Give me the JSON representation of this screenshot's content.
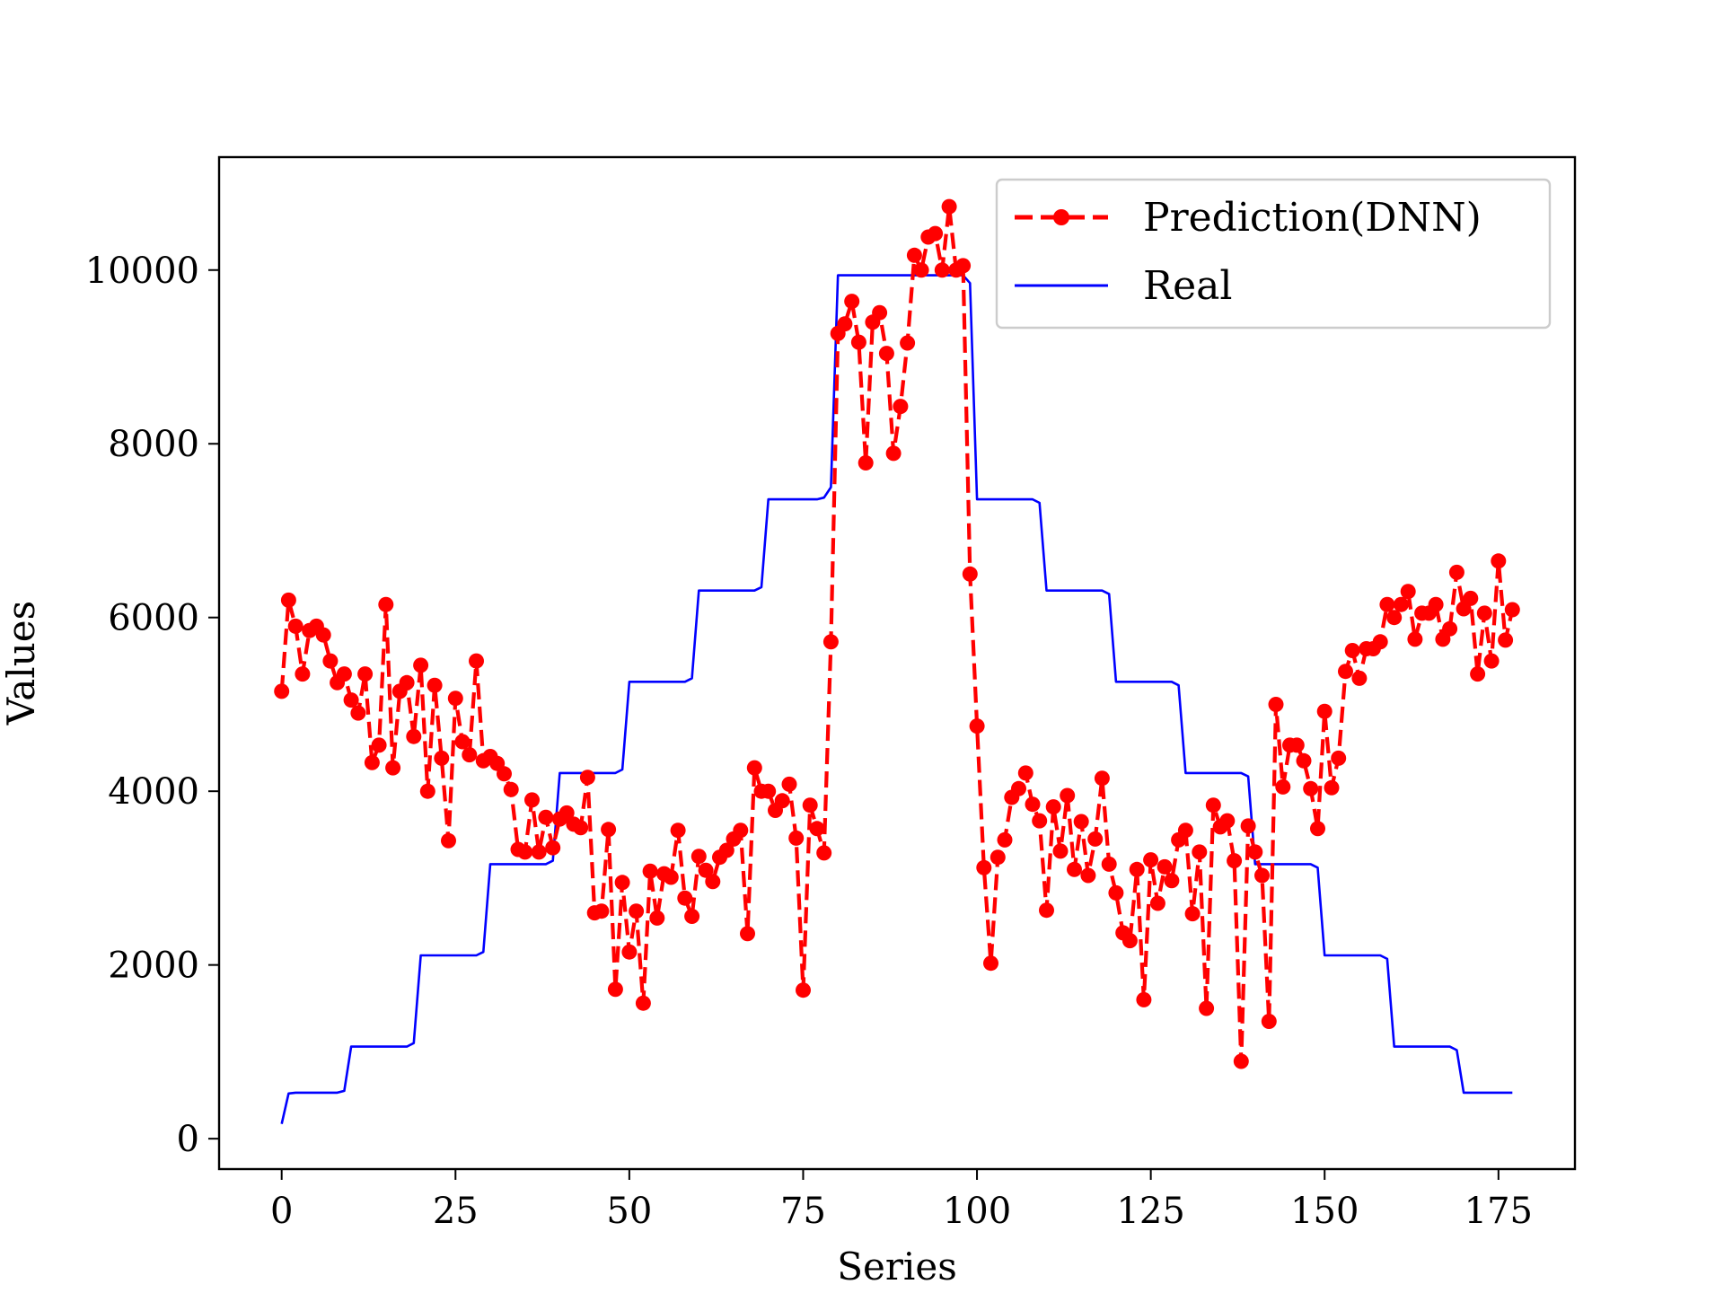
{
  "chart_data": {
    "type": "line",
    "xlabel": "Series",
    "ylabel": "Values",
    "xlim": [
      -9,
      186
    ],
    "ylim": [
      -350,
      11300
    ],
    "xticks": [
      0,
      25,
      50,
      75,
      100,
      125,
      150,
      175
    ],
    "yticks": [
      0,
      2000,
      4000,
      6000,
      8000,
      10000
    ],
    "legend_position": "top-right",
    "series": [
      {
        "name": "Prediction(DNN)",
        "color": "#ff0000",
        "style": "dashed-with-dots",
        "x": [
          0,
          1,
          2,
          3,
          4,
          5,
          6,
          7,
          8,
          9,
          10,
          11,
          12,
          13,
          14,
          15,
          16,
          17,
          18,
          19,
          20,
          21,
          22,
          23,
          24,
          25,
          26,
          27,
          28,
          29,
          30,
          31,
          32,
          33,
          34,
          35,
          36,
          37,
          38,
          39,
          40,
          41,
          42,
          43,
          44,
          45,
          46,
          47,
          48,
          49,
          50,
          51,
          52,
          53,
          54,
          55,
          56,
          57,
          58,
          59,
          60,
          61,
          62,
          63,
          64,
          65,
          66,
          67,
          68,
          69,
          70,
          71,
          72,
          73,
          74,
          75,
          76,
          77,
          78,
          79,
          80,
          81,
          82,
          83,
          84,
          85,
          86,
          87,
          88,
          89,
          90,
          91,
          92,
          93,
          94,
          95,
          96,
          97,
          98,
          99,
          100,
          101,
          102,
          103,
          104,
          105,
          106,
          107,
          108,
          109,
          110,
          111,
          112,
          113,
          114,
          115,
          116,
          117,
          118,
          119,
          120,
          121,
          122,
          123,
          124,
          125,
          126,
          127,
          128,
          129,
          130,
          131,
          132,
          133,
          134,
          135,
          136,
          137,
          138,
          139,
          140,
          141,
          142,
          143,
          144,
          145,
          146,
          147,
          148,
          149,
          150,
          151,
          152,
          153,
          154,
          155,
          156,
          157,
          158,
          159,
          160,
          161,
          162,
          163,
          164,
          165,
          166,
          167,
          168,
          169,
          170,
          171,
          172,
          173,
          174,
          175,
          176,
          177
        ],
        "y": [
          5150,
          6200,
          5900,
          5350,
          5850,
          5900,
          5800,
          5500,
          5250,
          5350,
          5050,
          4900,
          5350,
          4330,
          4530,
          6150,
          4270,
          5150,
          5250,
          4630,
          5450,
          4000,
          5220,
          4380,
          3430,
          5070,
          4570,
          4420,
          5500,
          4350,
          4400,
          4320,
          4200,
          4020,
          3330,
          3300,
          3900,
          3300,
          3700,
          3350,
          3680,
          3750,
          3620,
          3580,
          4160,
          2600,
          2620,
          3560,
          1720,
          2950,
          2150,
          2620,
          1560,
          3080,
          2540,
          3050,
          3010,
          3550,
          2770,
          2560,
          3250,
          3090,
          2960,
          3240,
          3320,
          3450,
          3550,
          2360,
          4270,
          4000,
          4000,
          3780,
          3890,
          4080,
          3460,
          1710,
          3840,
          3570,
          3290,
          5720,
          9270,
          9380,
          9640,
          9170,
          7780,
          9400,
          9510,
          9040,
          7890,
          8430,
          9160,
          10170,
          10000,
          10380,
          10420,
          10000,
          10730,
          10000,
          10050,
          6500,
          4750,
          3120,
          2020,
          3240,
          3440,
          3930,
          4030,
          4210,
          3850,
          3660,
          2630,
          3820,
          3310,
          3950,
          3100,
          3650,
          3030,
          3450,
          4150,
          3160,
          2830,
          2370,
          2280,
          3100,
          1600,
          3210,
          2710,
          3130,
          2970,
          3440,
          3550,
          2590,
          3300,
          1500,
          3840,
          3590,
          3660,
          3200,
          890,
          3600,
          3300,
          3030,
          1350,
          5000,
          4050,
          4530,
          4530,
          4350,
          4030,
          3570,
          4920,
          4040,
          4380,
          5380,
          5620,
          5300,
          5640,
          5640,
          5720,
          6150,
          6000,
          6150,
          6300,
          5750,
          6050,
          6050,
          6150,
          5750,
          5870,
          6520,
          6100,
          6220,
          5350,
          6050,
          5500,
          6650,
          5740,
          6090
        ]
      },
      {
        "name": "Real",
        "color": "#0000ff",
        "style": "solid",
        "x": [
          0,
          1,
          2,
          3,
          4,
          5,
          6,
          7,
          8,
          9,
          10,
          11,
          12,
          13,
          14,
          15,
          16,
          17,
          18,
          19,
          20,
          21,
          22,
          23,
          24,
          25,
          26,
          27,
          28,
          29,
          30,
          31,
          32,
          33,
          34,
          35,
          36,
          37,
          38,
          39,
          40,
          41,
          42,
          43,
          44,
          45,
          46,
          47,
          48,
          49,
          50,
          51,
          52,
          53,
          54,
          55,
          56,
          57,
          58,
          59,
          60,
          61,
          62,
          63,
          64,
          65,
          66,
          67,
          68,
          69,
          70,
          71,
          72,
          73,
          74,
          75,
          76,
          77,
          78,
          79,
          80,
          81,
          82,
          83,
          84,
          85,
          86,
          87,
          88,
          89,
          90,
          91,
          92,
          93,
          94,
          95,
          96,
          97,
          98,
          99,
          100,
          101,
          102,
          103,
          104,
          105,
          106,
          107,
          108,
          109,
          110,
          111,
          112,
          113,
          114,
          115,
          116,
          117,
          118,
          119,
          120,
          121,
          122,
          123,
          124,
          125,
          126,
          127,
          128,
          129,
          130,
          131,
          132,
          133,
          134,
          135,
          136,
          137,
          138,
          139,
          140,
          141,
          142,
          143,
          144,
          145,
          146,
          147,
          148,
          149,
          150,
          151,
          152,
          153,
          154,
          155,
          156,
          157,
          158,
          159,
          160,
          161,
          162,
          163,
          164,
          165,
          166,
          167,
          168,
          169,
          170,
          171,
          172,
          173,
          174,
          175,
          176,
          177
        ],
        "y": [
          170,
          520,
          530,
          530,
          530,
          530,
          530,
          530,
          530,
          550,
          1060,
          1060,
          1060,
          1060,
          1060,
          1060,
          1060,
          1060,
          1060,
          1100,
          2110,
          2110,
          2110,
          2110,
          2110,
          2110,
          2110,
          2110,
          2110,
          2150,
          3160,
          3160,
          3160,
          3160,
          3160,
          3160,
          3160,
          3160,
          3160,
          3200,
          4210,
          4210,
          4210,
          4210,
          4210,
          4210,
          4210,
          4210,
          4210,
          4250,
          5260,
          5260,
          5260,
          5260,
          5260,
          5260,
          5260,
          5260,
          5260,
          5300,
          6310,
          6310,
          6310,
          6310,
          6310,
          6310,
          6310,
          6310,
          6310,
          6350,
          7360,
          7360,
          7360,
          7360,
          7360,
          7360,
          7360,
          7360,
          7380,
          7500,
          9940,
          9940,
          9940,
          9940,
          9940,
          9940,
          9940,
          9940,
          9940,
          9940,
          9940,
          9940,
          9940,
          9940,
          9940,
          9940,
          9940,
          9940,
          9940,
          9850,
          7360,
          7360,
          7360,
          7360,
          7360,
          7360,
          7360,
          7360,
          7360,
          7320,
          6310,
          6310,
          6310,
          6310,
          6310,
          6310,
          6310,
          6310,
          6310,
          6270,
          5260,
          5260,
          5260,
          5260,
          5260,
          5260,
          5260,
          5260,
          5260,
          5220,
          4210,
          4210,
          4210,
          4210,
          4210,
          4210,
          4210,
          4210,
          4210,
          4170,
          3160,
          3160,
          3160,
          3160,
          3160,
          3160,
          3160,
          3160,
          3160,
          3120,
          2110,
          2110,
          2110,
          2110,
          2110,
          2110,
          2110,
          2110,
          2110,
          2070,
          1060,
          1060,
          1060,
          1060,
          1060,
          1060,
          1060,
          1060,
          1060,
          1020,
          530,
          530,
          530,
          530,
          530,
          530,
          530,
          530
        ]
      }
    ]
  }
}
